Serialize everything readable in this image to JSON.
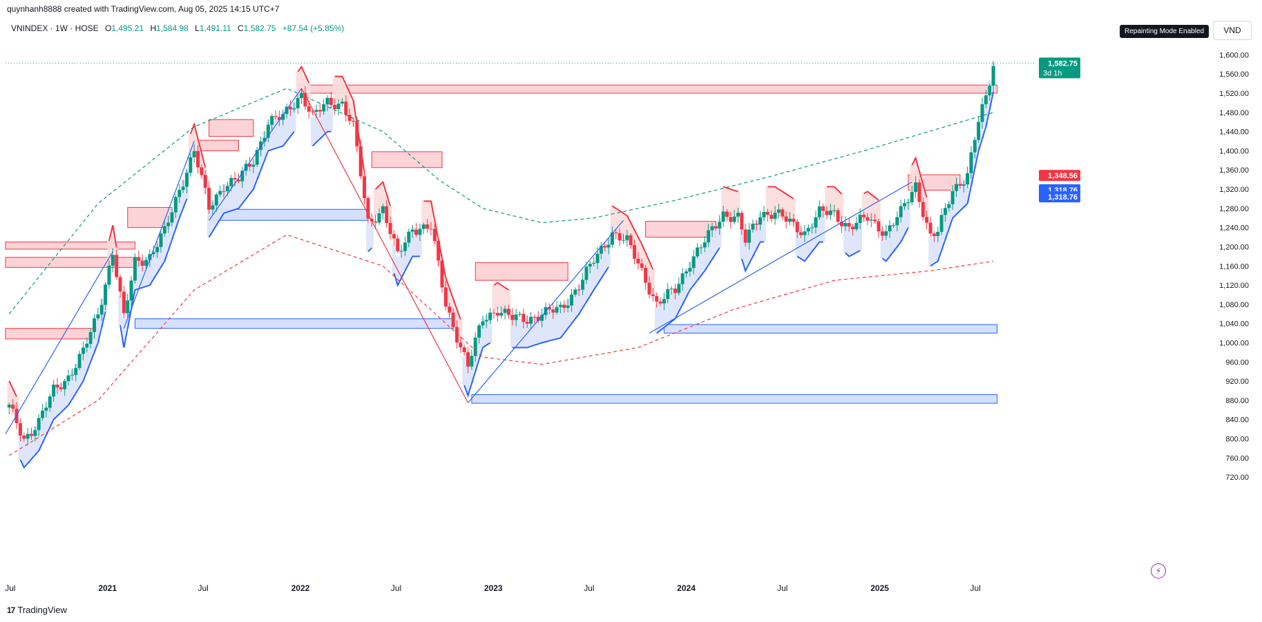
{
  "header": {
    "attribution": "quynhanh8888 created with TradingView.com, Aug 05, 2025 14:15 UTC+7"
  },
  "symbol": {
    "name": "VNINDEX · 1W · HOSE",
    "open_label": "O",
    "open": "1,495.21",
    "high_label": "H",
    "high": "1,584.98",
    "low_label": "L",
    "low": "1,491.11",
    "close_label": "C",
    "close": "1,582.75",
    "change": "+87.54 (+5.85%)"
  },
  "badges": {
    "repainting": "Repainting Mode Enabled",
    "currency": "VND"
  },
  "footer": {
    "brand": "TradingView",
    "logo_mark": "17"
  },
  "icons": {
    "bolt": "lightning-icon",
    "logo": "tradingview-logo-icon"
  },
  "colors": {
    "up": "#089981",
    "down": "#f23645",
    "zone_red": "#f23645",
    "zone_blue": "#2962ff",
    "bull_fill": "#dbe3fb",
    "bear_fill": "#fcdcdc"
  },
  "chart_data": {
    "type": "line",
    "title": "",
    "xlabel": "",
    "ylabel": "",
    "ylim": [
      690,
      1625
    ],
    "x_range": [
      "2020-06-22",
      "2025-10-20"
    ],
    "grid": false,
    "x_ticks": [
      {
        "date": "2020-07-01",
        "label": "Jul"
      },
      {
        "date": "2021-01-01",
        "label": "2021"
      },
      {
        "date": "2021-07-01",
        "label": "Jul"
      },
      {
        "date": "2022-01-01",
        "label": "2022"
      },
      {
        "date": "2022-07-01",
        "label": "Jul"
      },
      {
        "date": "2023-01-01",
        "label": "2023"
      },
      {
        "date": "2023-07-01",
        "label": "Jul"
      },
      {
        "date": "2024-01-01",
        "label": "2024"
      },
      {
        "date": "2024-07-01",
        "label": "Jul"
      },
      {
        "date": "2025-01-01",
        "label": "2025"
      },
      {
        "date": "2025-07-01",
        "label": "Jul"
      }
    ],
    "y_ticks": [
      {
        "value": 1600,
        "label": "1,600.00"
      },
      {
        "value": 1560,
        "label": "1,560.00"
      },
      {
        "value": 1520,
        "label": "1,520.00"
      },
      {
        "value": 1480,
        "label": "1,480.00"
      },
      {
        "value": 1440,
        "label": "1,440.00"
      },
      {
        "value": 1400,
        "label": "1,400.00"
      },
      {
        "value": 1360,
        "label": "1,360.00"
      },
      {
        "value": 1320,
        "label": "1,320.00"
      },
      {
        "value": 1280,
        "label": "1,280.00"
      },
      {
        "value": 1240,
        "label": "1,240.00"
      },
      {
        "value": 1200,
        "label": "1,200.00"
      },
      {
        "value": 1160,
        "label": "1,160.00"
      },
      {
        "value": 1120,
        "label": "1,120.00"
      },
      {
        "value": 1080,
        "label": "1,080.00"
      },
      {
        "value": 1040,
        "label": "1,040.00"
      },
      {
        "value": 1000,
        "label": "1,000.00"
      },
      {
        "value": 960,
        "label": "960.00"
      },
      {
        "value": 920,
        "label": "920.00"
      },
      {
        "value": 880,
        "label": "880.00"
      },
      {
        "value": 840,
        "label": "840.00"
      },
      {
        "value": 800,
        "label": "800.00"
      },
      {
        "value": 760,
        "label": "760.00"
      },
      {
        "value": 720,
        "label": "720.00"
      }
    ],
    "price_tags": [
      {
        "value": 1582.75,
        "label": "1,582.75",
        "sublabel": "3d 1h",
        "color": "#089981"
      },
      {
        "value": 1348.56,
        "label": "1,348.56",
        "color": "#f23645"
      },
      {
        "value": 1318.76,
        "label": "1,318.76",
        "color": "#2962ff"
      },
      {
        "value": 1304,
        "label": "1,318.76",
        "color": "#2962ff"
      }
    ],
    "last_price": 1582.75,
    "close_path": [
      {
        "d": "2020-06-29",
        "v": 865
      },
      {
        "d": "2020-07-27",
        "v": 800
      },
      {
        "d": "2020-08-24",
        "v": 835
      },
      {
        "d": "2020-09-21",
        "v": 900
      },
      {
        "d": "2020-10-19",
        "v": 930
      },
      {
        "d": "2020-11-16",
        "v": 980
      },
      {
        "d": "2020-12-14",
        "v": 1060
      },
      {
        "d": "2021-01-11",
        "v": 1190
      },
      {
        "d": "2021-02-01",
        "v": 1050
      },
      {
        "d": "2021-02-22",
        "v": 1170
      },
      {
        "d": "2021-03-22",
        "v": 1180
      },
      {
        "d": "2021-04-19",
        "v": 1230
      },
      {
        "d": "2021-05-17",
        "v": 1320
      },
      {
        "d": "2021-06-14",
        "v": 1400
      },
      {
        "d": "2021-07-12",
        "v": 1280
      },
      {
        "d": "2021-08-09",
        "v": 1330
      },
      {
        "d": "2021-09-06",
        "v": 1340
      },
      {
        "d": "2021-10-04",
        "v": 1380
      },
      {
        "d": "2021-11-01",
        "v": 1460
      },
      {
        "d": "2021-11-29",
        "v": 1470
      },
      {
        "d": "2022-01-03",
        "v": 1520
      },
      {
        "d": "2022-01-24",
        "v": 1470
      },
      {
        "d": "2022-02-21",
        "v": 1500
      },
      {
        "d": "2022-03-21",
        "v": 1500
      },
      {
        "d": "2022-04-11",
        "v": 1450
      },
      {
        "d": "2022-05-09",
        "v": 1250
      },
      {
        "d": "2022-06-06",
        "v": 1280
      },
      {
        "d": "2022-07-04",
        "v": 1180
      },
      {
        "d": "2022-08-01",
        "v": 1240
      },
      {
        "d": "2022-09-05",
        "v": 1240
      },
      {
        "d": "2022-10-03",
        "v": 1080
      },
      {
        "d": "2022-11-14",
        "v": 950
      },
      {
        "d": "2022-12-12",
        "v": 1050
      },
      {
        "d": "2023-01-09",
        "v": 1070
      },
      {
        "d": "2023-02-06",
        "v": 1050
      },
      {
        "d": "2023-03-06",
        "v": 1050
      },
      {
        "d": "2023-04-03",
        "v": 1060
      },
      {
        "d": "2023-05-08",
        "v": 1070
      },
      {
        "d": "2023-06-12",
        "v": 1120
      },
      {
        "d": "2023-07-10",
        "v": 1170
      },
      {
        "d": "2023-08-14",
        "v": 1230
      },
      {
        "d": "2023-09-11",
        "v": 1210
      },
      {
        "d": "2023-10-09",
        "v": 1150
      },
      {
        "d": "2023-11-06",
        "v": 1080
      },
      {
        "d": "2023-12-11",
        "v": 1110
      },
      {
        "d": "2024-01-08",
        "v": 1170
      },
      {
        "d": "2024-02-05",
        "v": 1210
      },
      {
        "d": "2024-03-11",
        "v": 1270
      },
      {
        "d": "2024-04-08",
        "v": 1260
      },
      {
        "d": "2024-04-22",
        "v": 1210
      },
      {
        "d": "2024-05-20",
        "v": 1270
      },
      {
        "d": "2024-06-17",
        "v": 1270
      },
      {
        "d": "2024-07-15",
        "v": 1250
      },
      {
        "d": "2024-08-12",
        "v": 1230
      },
      {
        "d": "2024-09-09",
        "v": 1270
      },
      {
        "d": "2024-10-07",
        "v": 1270
      },
      {
        "d": "2024-11-04",
        "v": 1240
      },
      {
        "d": "2024-12-09",
        "v": 1260
      },
      {
        "d": "2025-01-13",
        "v": 1230
      },
      {
        "d": "2025-02-10",
        "v": 1270
      },
      {
        "d": "2025-03-10",
        "v": 1330
      },
      {
        "d": "2025-04-07",
        "v": 1220
      },
      {
        "d": "2025-04-21",
        "v": 1230
      },
      {
        "d": "2025-05-19",
        "v": 1320
      },
      {
        "d": "2025-06-16",
        "v": 1350
      },
      {
        "d": "2025-07-07",
        "v": 1460
      },
      {
        "d": "2025-07-21",
        "v": 1510
      },
      {
        "d": "2025-08-04",
        "v": 1582.75
      }
    ],
    "upper_band": [
      {
        "d": "2020-06-29",
        "v": 1060
      },
      {
        "d": "2020-12-14",
        "v": 1290
      },
      {
        "d": "2021-06-14",
        "v": 1450
      },
      {
        "d": "2021-12-06",
        "v": 1530
      },
      {
        "d": "2022-06-06",
        "v": 1440
      },
      {
        "d": "2022-09-19",
        "v": 1340
      },
      {
        "d": "2022-12-12",
        "v": 1280
      },
      {
        "d": "2023-04-03",
        "v": 1250
      },
      {
        "d": "2023-07-10",
        "v": 1260
      },
      {
        "d": "2023-12-04",
        "v": 1295
      },
      {
        "d": "2024-06-03",
        "v": 1345
      },
      {
        "d": "2024-12-02",
        "v": 1400
      },
      {
        "d": "2025-08-04",
        "v": 1480
      }
    ],
    "lower_band": [
      {
        "d": "2020-06-29",
        "v": 765
      },
      {
        "d": "2020-12-14",
        "v": 880
      },
      {
        "d": "2021-06-14",
        "v": 1110
      },
      {
        "d": "2021-12-06",
        "v": 1225
      },
      {
        "d": "2022-06-06",
        "v": 1160
      },
      {
        "d": "2022-12-12",
        "v": 970
      },
      {
        "d": "2023-04-03",
        "v": 955
      },
      {
        "d": "2023-10-02",
        "v": 990
      },
      {
        "d": "2024-04-01",
        "v": 1070
      },
      {
        "d": "2024-10-07",
        "v": 1130
      },
      {
        "d": "2025-04-07",
        "v": 1150
      },
      {
        "d": "2025-08-04",
        "v": 1170
      }
    ],
    "swing_lines": [
      {
        "from": {
          "d": "2020-06-22",
          "v": 810
        },
        "to": {
          "d": "2021-01-11",
          "v": 1190
        }
      },
      {
        "from": {
          "d": "2021-02-01",
          "v": 1030
        },
        "to": {
          "d": "2021-06-14",
          "v": 1420
        }
      },
      {
        "from": {
          "d": "2021-07-12",
          "v": 1255
        },
        "to": {
          "d": "2022-01-03",
          "v": 1530
        }
      },
      {
        "from": {
          "d": "2022-01-03",
          "v": 1530
        },
        "to": {
          "d": "2022-11-14",
          "v": 875
        }
      },
      {
        "from": {
          "d": "2022-11-14",
          "v": 875
        },
        "to": {
          "d": "2023-09-04",
          "v": 1255
        }
      },
      {
        "from": {
          "d": "2023-10-23",
          "v": 1020
        },
        "to": {
          "d": "2025-03-03",
          "v": 1335
        }
      }
    ],
    "resistance_zones": [
      {
        "start": "2021-12-27",
        "end": "2025-08-11",
        "top": 1537,
        "bottom": 1520
      },
      {
        "start": "2020-06-22",
        "end": "2021-02-22",
        "top": 1210,
        "bottom": 1195
      },
      {
        "start": "2020-06-22",
        "end": "2021-02-22",
        "top": 1178,
        "bottom": 1157
      },
      {
        "start": "2020-06-22",
        "end": "2020-12-14",
        "top": 1030,
        "bottom": 1008
      },
      {
        "start": "2021-02-08",
        "end": "2021-05-03",
        "top": 1282,
        "bottom": 1240
      },
      {
        "start": "2021-07-12",
        "end": "2021-10-04",
        "top": 1465,
        "bottom": 1430
      },
      {
        "start": "2021-06-14",
        "end": "2021-09-06",
        "top": 1422,
        "bottom": 1400
      },
      {
        "start": "2022-05-16",
        "end": "2022-09-26",
        "top": 1398,
        "bottom": 1365
      },
      {
        "start": "2022-11-28",
        "end": "2023-05-22",
        "top": 1167,
        "bottom": 1130
      },
      {
        "start": "2023-10-16",
        "end": "2024-02-26",
        "top": 1253,
        "bottom": 1220
      },
      {
        "start": "2025-02-24",
        "end": "2025-06-02",
        "top": 1350,
        "bottom": 1318
      }
    ],
    "support_zones": [
      {
        "start": "2021-02-22",
        "end": "2022-10-17",
        "top": 1050,
        "bottom": 1030
      },
      {
        "start": "2021-07-12",
        "end": "2022-05-09",
        "top": 1278,
        "bottom": 1255
      },
      {
        "start": "2022-11-21",
        "end": "2025-08-11",
        "top": 892,
        "bottom": 874
      },
      {
        "start": "2023-11-20",
        "end": "2025-08-11",
        "top": 1038,
        "bottom": 1020
      }
    ]
  }
}
